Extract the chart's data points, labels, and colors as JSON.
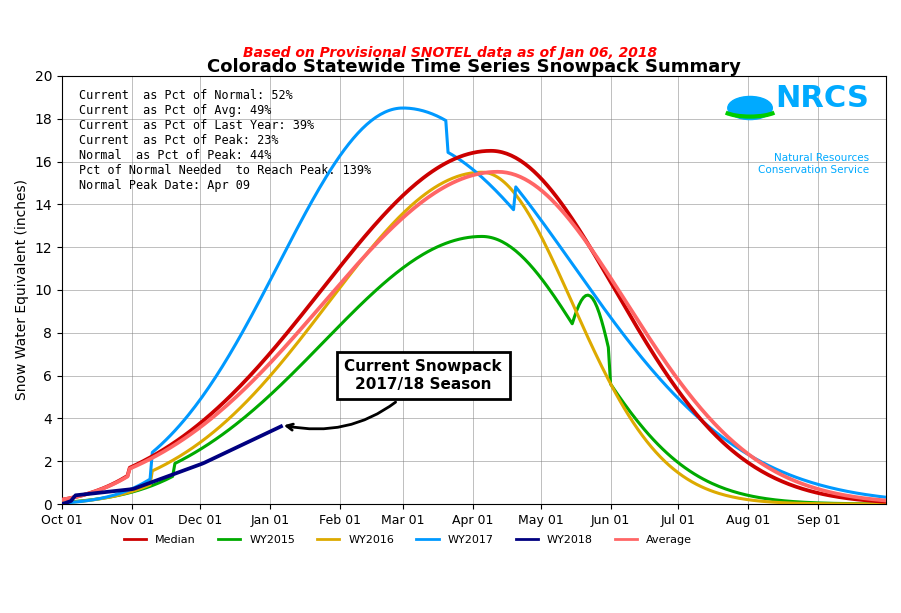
{
  "title": "Colorado Statewide Time Series Snowpack Summary",
  "subtitle": "Based on Provisional SNOTEL data as of Jan 06, 2018",
  "ylabel": "Snow Water Equivalent (inches)",
  "ylim": [
    0,
    20
  ],
  "stats_text": "Current  as Pct of Normal: 52%\nCurrent  as Pct of Avg: 49%\nCurrent  as Pct of Last Year: 39%\nCurrent  as Pct of Peak: 23%\nNormal  as Pct of Peak: 44%\nPct of Normal Needed  to Reach Peak: 139%\nNormal Peak Date: Apr 09",
  "annotation_text": "Current Snowpack\n2017/18 Season",
  "colors": {
    "Median": "#cc0000",
    "WY2015": "#00aa00",
    "WY2016": "#ddaa00",
    "WY2017": "#0099ff",
    "WY2018": "#000080",
    "Average": "#ff4444"
  },
  "nrcs_color": "#00aaff",
  "subtitle_color": "#ff0000",
  "background_color": "#ffffff"
}
